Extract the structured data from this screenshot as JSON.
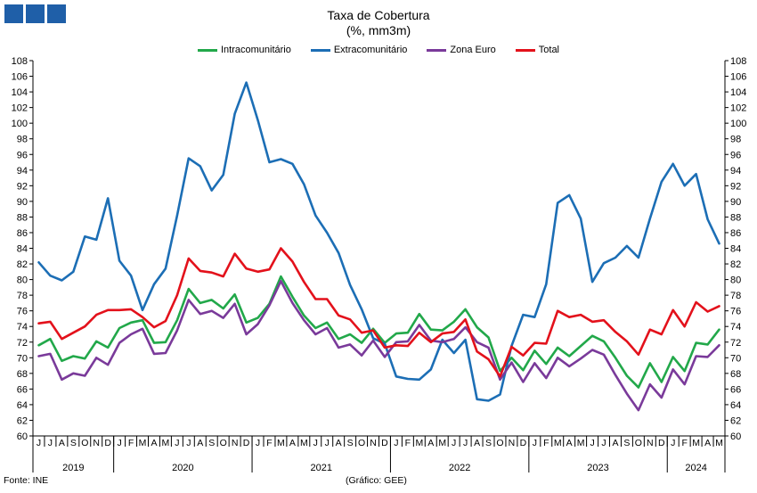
{
  "logo": {
    "color": "#1f5fa8"
  },
  "footer": {
    "source": "Fonte: INE",
    "credit": "(Gráfico: GEE)"
  },
  "chart_data": {
    "type": "line",
    "title": "Taxa de Cobertura",
    "subtitle": "(%, mm3m)",
    "grid": false,
    "legend_position": "top",
    "ylim": [
      60,
      108
    ],
    "ytick_step": 2,
    "month_labels": [
      "J",
      "J",
      "A",
      "S",
      "O",
      "N",
      "D",
      "J",
      "F",
      "M",
      "A",
      "M",
      "J",
      "J",
      "A",
      "S",
      "O",
      "N",
      "D",
      "J",
      "F",
      "M",
      "A",
      "M",
      "J",
      "J",
      "A",
      "S",
      "O",
      "N",
      "D",
      "J",
      "F",
      "M",
      "A",
      "M",
      "J",
      "J",
      "A",
      "S",
      "O",
      "N",
      "D",
      "J",
      "F",
      "M",
      "A",
      "M",
      "J",
      "J",
      "A",
      "S",
      "O",
      "N",
      "D",
      "J",
      "F",
      "M",
      "A",
      "M"
    ],
    "year_labels": [
      {
        "label": "2019",
        "start": 0,
        "end": 6
      },
      {
        "label": "2020",
        "start": 7,
        "end": 18
      },
      {
        "label": "2021",
        "start": 19,
        "end": 30
      },
      {
        "label": "2022",
        "start": 31,
        "end": 42
      },
      {
        "label": "2023",
        "start": 43,
        "end": 54
      },
      {
        "label": "2024",
        "start": 55,
        "end": 59
      }
    ],
    "series": [
      {
        "name": "Intracomunitário",
        "color": "#22a84a",
        "values": [
          71.6,
          72.4,
          69.6,
          70.2,
          69.9,
          72.1,
          71.3,
          73.8,
          74.5,
          74.8,
          71.9,
          72.0,
          74.8,
          78.8,
          77.0,
          77.4,
          76.3,
          78.1,
          74.5,
          75.1,
          76.9,
          80.4,
          77.8,
          75.4,
          73.8,
          74.5,
          72.4,
          73.0,
          71.9,
          73.7,
          71.9,
          73.1,
          73.2,
          75.6,
          73.6,
          73.5,
          74.6,
          76.2,
          73.9,
          72.6,
          68.3,
          70.0,
          68.4,
          70.9,
          69.2,
          71.3,
          70.2,
          71.5,
          72.8,
          72.1,
          70.0,
          67.7,
          66.2,
          69.3,
          66.9,
          70.1,
          68.3,
          71.9,
          71.7,
          73.6
        ]
      },
      {
        "name": "Extracomunitário",
        "color": "#1c6eb5",
        "values": [
          82.2,
          80.5,
          79.9,
          81.0,
          85.5,
          85.1,
          90.4,
          82.4,
          80.5,
          76.1,
          79.4,
          81.4,
          88.2,
          95.5,
          94.5,
          91.4,
          93.4,
          101.2,
          105.2,
          100.4,
          95.0,
          95.4,
          94.8,
          92.2,
          88.2,
          86.0,
          83.4,
          79.3,
          76.2,
          72.5,
          71.8,
          67.6,
          67.3,
          67.2,
          68.5,
          72.3,
          70.6,
          72.3,
          64.7,
          64.5,
          65.3,
          71.5,
          75.5,
          75.2,
          79.4,
          89.8,
          90.8,
          87.8,
          79.7,
          82.1,
          82.8,
          84.3,
          82.8,
          87.8,
          92.5,
          94.8,
          92.0,
          93.5,
          87.7,
          84.6
        ]
      },
      {
        "name": "Zona Euro",
        "color": "#7a3a9a",
        "values": [
          70.2,
          70.5,
          67.2,
          68.0,
          67.7,
          70.0,
          69.1,
          71.9,
          73.0,
          73.7,
          70.5,
          70.6,
          73.5,
          77.4,
          75.6,
          76.0,
          75.1,
          76.9,
          73.0,
          74.3,
          76.7,
          79.8,
          77.0,
          74.8,
          73.0,
          73.8,
          71.3,
          71.7,
          70.3,
          72.2,
          70.1,
          72.0,
          72.1,
          74.2,
          72.2,
          72.0,
          72.4,
          73.9,
          72.0,
          71.3,
          67.2,
          69.4,
          66.9,
          69.3,
          67.4,
          70.0,
          68.9,
          69.9,
          71.0,
          70.4,
          67.8,
          65.4,
          63.3,
          66.6,
          64.9,
          68.5,
          66.6,
          70.2,
          70.1,
          71.6
        ]
      },
      {
        "name": "Total",
        "color": "#e3111b",
        "values": [
          74.4,
          74.6,
          72.4,
          73.2,
          74.0,
          75.5,
          76.1,
          76.1,
          76.2,
          75.2,
          73.9,
          74.7,
          78.0,
          82.7,
          81.1,
          80.9,
          80.4,
          83.3,
          81.4,
          81.0,
          81.3,
          84.0,
          82.3,
          79.7,
          77.5,
          77.5,
          75.4,
          74.9,
          73.2,
          73.5,
          71.3,
          71.6,
          71.5,
          73.2,
          72.0,
          73.1,
          73.3,
          74.9,
          70.8,
          69.8,
          67.6,
          71.4,
          70.3,
          71.9,
          71.8,
          76.0,
          75.2,
          75.5,
          74.6,
          74.8,
          73.3,
          72.1,
          70.4,
          73.6,
          73.0,
          76.1,
          74.0,
          77.1,
          75.9,
          76.6
        ]
      }
    ]
  }
}
